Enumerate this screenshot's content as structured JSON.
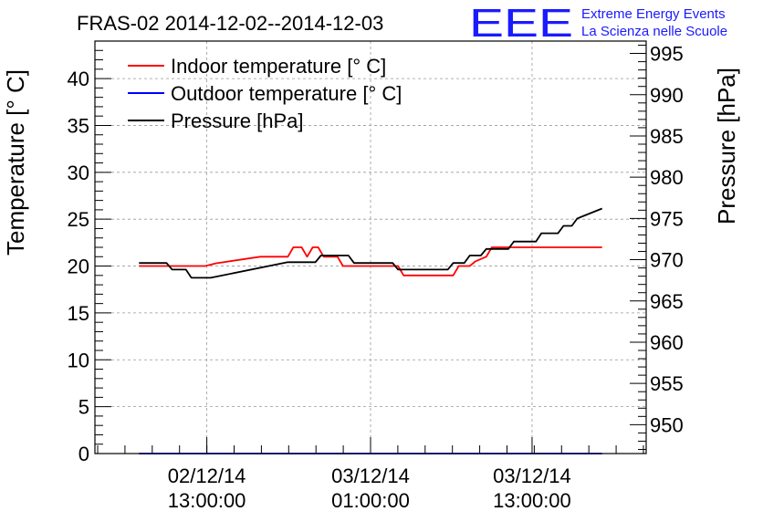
{
  "chart_data": {
    "type": "line",
    "title": "FRAS-02 2014-12-02--2014-12-03",
    "logo": {
      "mark": "EEE",
      "line1": "Extreme Energy Events",
      "line2": "La Scienza nelle Scuole",
      "color": "#1a1aff"
    },
    "ylabel_left": "Temperature [° C]",
    "ylabel_right": "Pressure [hPa]",
    "ylim_left": [
      0,
      44
    ],
    "ylim_right": [
      946.5,
      996.5
    ],
    "xlim": [
      0,
      100
    ],
    "y_ticks_left": [
      0,
      5,
      10,
      15,
      20,
      25,
      30,
      35,
      40
    ],
    "y_ticks_right": [
      950,
      955,
      960,
      965,
      970,
      975,
      980,
      985,
      990,
      995
    ],
    "x_ticks": [
      {
        "x": 20.3,
        "label1": "02/12/14",
        "label2": "13:00:00"
      },
      {
        "x": 50.0,
        "label1": "03/12/14",
        "label2": "01:00:00"
      },
      {
        "x": 79.3,
        "label1": "03/12/14",
        "label2": "13:00:00"
      }
    ],
    "grid": true,
    "legend_position": "top-left",
    "series": [
      {
        "name": "Indoor temperature [° C]",
        "axis": "left",
        "color": "#ff0000",
        "points": [
          [
            8,
            20
          ],
          [
            20,
            20
          ],
          [
            22,
            20.3
          ],
          [
            30,
            21
          ],
          [
            35,
            21
          ],
          [
            36,
            22
          ],
          [
            37.5,
            22
          ],
          [
            38.5,
            21
          ],
          [
            39.5,
            22
          ],
          [
            40.5,
            22
          ],
          [
            41.5,
            21
          ],
          [
            44,
            21
          ],
          [
            45,
            20
          ],
          [
            55,
            20
          ],
          [
            56,
            19
          ],
          [
            65,
            19
          ],
          [
            66,
            20
          ],
          [
            68,
            20
          ],
          [
            69,
            20.5
          ],
          [
            71,
            21
          ],
          [
            72,
            22
          ],
          [
            92,
            22
          ]
        ]
      },
      {
        "name": "Outdoor temperature [° C]",
        "axis": "left",
        "color": "#0000ff",
        "points": [
          [
            8,
            0
          ],
          [
            92,
            0
          ]
        ]
      },
      {
        "name": "Pressure [hPa]",
        "axis": "right",
        "color": "#000000",
        "points": [
          [
            8,
            969.6
          ],
          [
            13,
            969.6
          ],
          [
            14,
            968.8
          ],
          [
            16.5,
            968.8
          ],
          [
            17.5,
            967.8
          ],
          [
            21,
            967.8
          ],
          [
            35,
            969.7
          ],
          [
            40,
            969.7
          ],
          [
            41,
            970.5
          ],
          [
            46,
            970.5
          ],
          [
            47,
            969.6
          ],
          [
            54,
            969.6
          ],
          [
            55,
            968.8
          ],
          [
            64,
            968.8
          ],
          [
            65,
            969.6
          ],
          [
            67,
            969.6
          ],
          [
            68,
            970.5
          ],
          [
            70,
            970.5
          ],
          [
            71,
            971.3
          ],
          [
            75,
            971.3
          ],
          [
            76,
            972.2
          ],
          [
            80,
            972.2
          ],
          [
            81,
            973.2
          ],
          [
            84,
            973.2
          ],
          [
            85,
            974.1
          ],
          [
            86.5,
            974.1
          ],
          [
            87.5,
            975.0
          ],
          [
            92,
            976.2
          ]
        ]
      }
    ]
  }
}
